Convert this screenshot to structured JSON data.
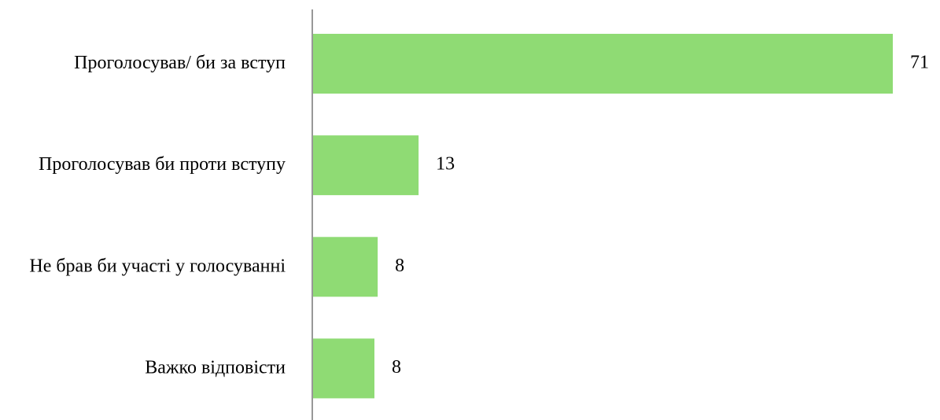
{
  "chart_data": {
    "type": "hbar",
    "categories": [
      "Проголосував/ би за вступ",
      "Проголосував би проти вступу",
      "Не брав би участі у голосуванні",
      "Важко відповісти"
    ],
    "values": [
      71,
      13,
      8,
      7.6
    ],
    "value_labels": [
      "71",
      "13",
      "8",
      "8"
    ],
    "color": "#8fdb74"
  }
}
